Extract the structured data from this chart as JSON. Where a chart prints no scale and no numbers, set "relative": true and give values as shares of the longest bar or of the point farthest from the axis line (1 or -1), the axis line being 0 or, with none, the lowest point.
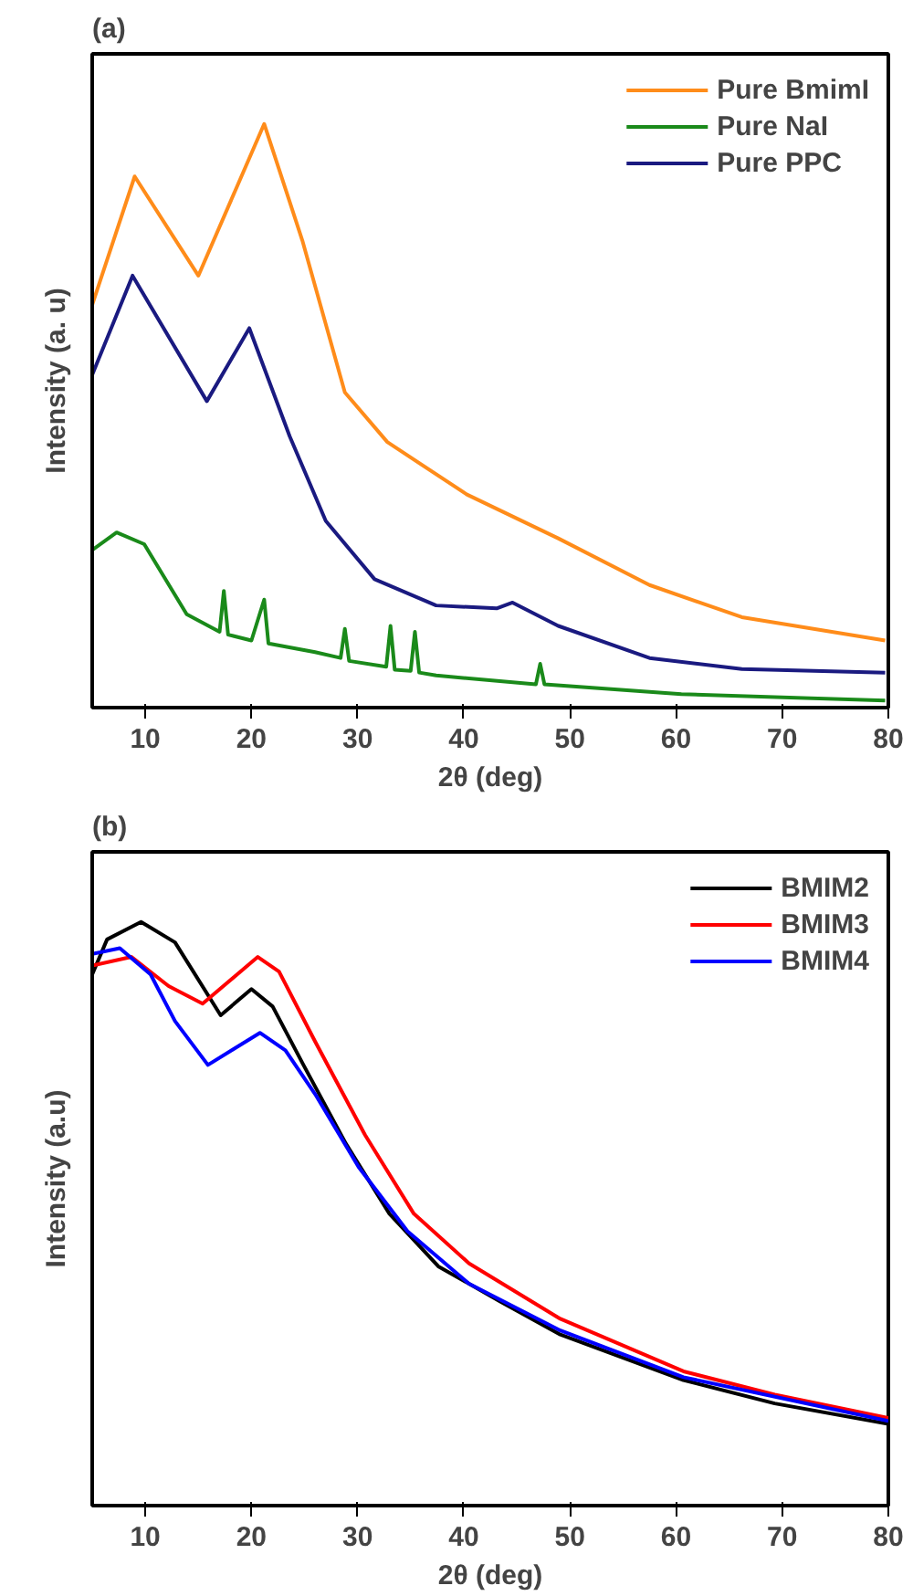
{
  "chart_data": [
    {
      "type": "line",
      "title": "(a)",
      "xlabel": "2θ (deg)",
      "ylabel": "Intensity (a. u)",
      "relative": true,
      "xlim": [
        5,
        80
      ],
      "xticks": [
        10,
        20,
        30,
        40,
        50,
        60,
        70,
        80
      ],
      "legend": "top right",
      "grid": false,
      "series": [
        {
          "name": "Pure BmimI",
          "color": "#ff8c1a",
          "x": [
            5,
            9.0,
            15.0,
            21.2,
            24.8,
            28.8,
            32.8,
            40.3,
            48.9,
            57.5,
            66.2,
            79.7
          ],
          "values": [
            0.69,
            0.91,
            0.74,
            1.0,
            0.8,
            0.54,
            0.455,
            0.365,
            0.29,
            0.21,
            0.155,
            0.115
          ]
        },
        {
          "name": "Pure NaI",
          "color": "#1a8a1a",
          "x": [
            5,
            7.3,
            9.9,
            13.9,
            17.0,
            17.4,
            17.8,
            20.0,
            21.2,
            21.6,
            26.0,
            28.4,
            28.8,
            29.2,
            32.7,
            33.1,
            33.5,
            35.0,
            35.4,
            35.8,
            37.4,
            46.8,
            47.2,
            47.6,
            60.5,
            79.7
          ],
          "values": [
            0.27,
            0.3,
            0.28,
            0.16,
            0.13,
            0.2,
            0.125,
            0.115,
            0.185,
            0.11,
            0.095,
            0.085,
            0.135,
            0.08,
            0.07,
            0.14,
            0.065,
            0.063,
            0.13,
            0.06,
            0.055,
            0.04,
            0.075,
            0.04,
            0.023,
            0.012
          ]
        },
        {
          "name": "Pure PPC",
          "color": "#1a1a80",
          "x": [
            5,
            8.8,
            15.8,
            19.8,
            23.6,
            27.0,
            31.6,
            37.4,
            43.1,
            44.6,
            48.9,
            57.5,
            66.2,
            79.7
          ],
          "values": [
            0.57,
            0.74,
            0.525,
            0.65,
            0.465,
            0.32,
            0.22,
            0.175,
            0.17,
            0.18,
            0.14,
            0.085,
            0.066,
            0.06
          ]
        }
      ]
    },
    {
      "type": "line",
      "title": "(b)",
      "xlabel": "2θ (deg)",
      "ylabel": "Intensity (a.u)",
      "relative": true,
      "xlim": [
        5,
        80
      ],
      "xticks": [
        10,
        20,
        30,
        40,
        50,
        60,
        70,
        80
      ],
      "legend": "top right",
      "grid": false,
      "series": [
        {
          "name": "BMIM2",
          "color": "#000000",
          "x": [
            5,
            6.4,
            9.6,
            12.8,
            17.1,
            20.0,
            22.0,
            24.9,
            28.9,
            33.0,
            37.6,
            43.4,
            49.1,
            60.7,
            69.3,
            80
          ],
          "values": [
            0.91,
            0.97,
            1.0,
            0.965,
            0.84,
            0.885,
            0.855,
            0.755,
            0.62,
            0.5,
            0.41,
            0.35,
            0.293,
            0.215,
            0.175,
            0.14
          ]
        },
        {
          "name": "BMIM3",
          "color": "#ff0000",
          "x": [
            5,
            8.7,
            12.2,
            15.4,
            20.6,
            22.6,
            26.0,
            30.7,
            35.3,
            40.5,
            49.1,
            60.7,
            69.3,
            80
          ],
          "values": [
            0.925,
            0.94,
            0.89,
            0.86,
            0.94,
            0.915,
            0.795,
            0.635,
            0.5,
            0.415,
            0.32,
            0.23,
            0.19,
            0.15
          ]
        },
        {
          "name": "BMIM4",
          "color": "#0000ff",
          "x": [
            5,
            7.6,
            10.5,
            12.8,
            15.9,
            20.8,
            23.2,
            26.0,
            30.1,
            34.7,
            40.5,
            49.1,
            60.7,
            80
          ],
          "values": [
            0.945,
            0.955,
            0.91,
            0.83,
            0.755,
            0.81,
            0.78,
            0.705,
            0.58,
            0.47,
            0.38,
            0.3,
            0.22,
            0.145
          ]
        }
      ]
    }
  ]
}
